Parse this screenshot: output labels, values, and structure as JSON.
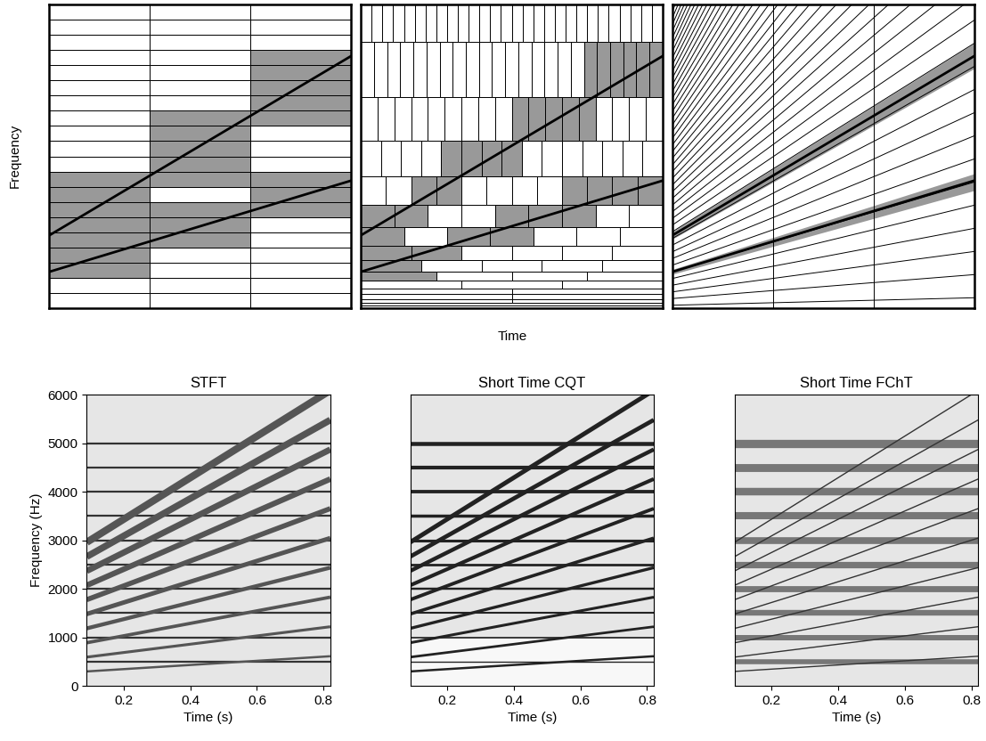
{
  "diagram": {
    "xlabel": "Time",
    "ylabel": "Frequency"
  },
  "chart_data": [
    {
      "type": "spectrogram",
      "title": "STFT",
      "xlabel": "Time (s)",
      "ylabel": "Frequency (Hz)",
      "xlim": [
        0.09,
        0.82
      ],
      "ylim": [
        0,
        6000
      ],
      "xticks": [
        0.2,
        0.4,
        0.6,
        0.8
      ],
      "yticks": [
        0,
        1000,
        2000,
        3000,
        4000,
        5000,
        6000
      ],
      "horizontal_lines": [
        500,
        1000,
        1500,
        2000,
        2500,
        3000,
        3500,
        4000,
        4500,
        5000
      ],
      "chirp_lines": {
        "x": [
          0.09,
          0.82
        ],
        "values": [
          [
            296,
            609
          ],
          [
            591,
            1217
          ],
          [
            887,
            1826
          ],
          [
            1183,
            2434
          ],
          [
            1479,
            3043
          ],
          [
            1774,
            3651
          ],
          [
            2070,
            4260
          ],
          [
            2366,
            4869
          ],
          [
            2661,
            5477
          ],
          [
            2957,
            6086
          ]
        ]
      }
    },
    {
      "type": "spectrogram",
      "title": "Short Time CQT",
      "xlabel": "Time (s)",
      "xlim": [
        0.09,
        0.82
      ],
      "ylim": [
        0,
        6000
      ],
      "xticks": [
        0.2,
        0.4,
        0.6,
        0.8
      ],
      "yticks": [
        0,
        1000,
        2000,
        3000,
        4000,
        5000,
        6000
      ],
      "tick_labels": "x",
      "horizontal_lines": [
        500,
        1000,
        1500,
        2000,
        2500,
        3000,
        3500,
        4000,
        4500,
        5000
      ],
      "chirp_lines": {
        "x": [
          0.09,
          0.82
        ],
        "values": [
          [
            296,
            609
          ],
          [
            591,
            1217
          ],
          [
            887,
            1826
          ],
          [
            1183,
            2434
          ],
          [
            1479,
            3043
          ],
          [
            1774,
            3651
          ],
          [
            2070,
            4260
          ],
          [
            2366,
            4869
          ],
          [
            2661,
            5477
          ],
          [
            2957,
            6086
          ]
        ]
      }
    },
    {
      "type": "spectrogram",
      "title": "Short Time FChT",
      "xlabel": "Time (s)",
      "xlim": [
        0.09,
        0.82
      ],
      "ylim": [
        0,
        6000
      ],
      "xticks": [
        0.2,
        0.4,
        0.6,
        0.8
      ],
      "yticks": [
        0,
        1000,
        2000,
        3000,
        4000,
        5000,
        6000
      ],
      "tick_labels": "x",
      "horizontal_lines": [
        500,
        1000,
        1500,
        2000,
        2500,
        3000,
        3500,
        4000,
        4500,
        5000
      ],
      "chirp_lines": {
        "x": [
          0.09,
          0.82
        ],
        "values": [
          [
            296,
            609
          ],
          [
            591,
            1217
          ],
          [
            887,
            1826
          ],
          [
            1183,
            2434
          ],
          [
            1479,
            3043
          ],
          [
            1774,
            3651
          ],
          [
            2070,
            4260
          ],
          [
            2366,
            4869
          ],
          [
            2661,
            5477
          ],
          [
            2957,
            6086
          ]
        ]
      }
    }
  ]
}
